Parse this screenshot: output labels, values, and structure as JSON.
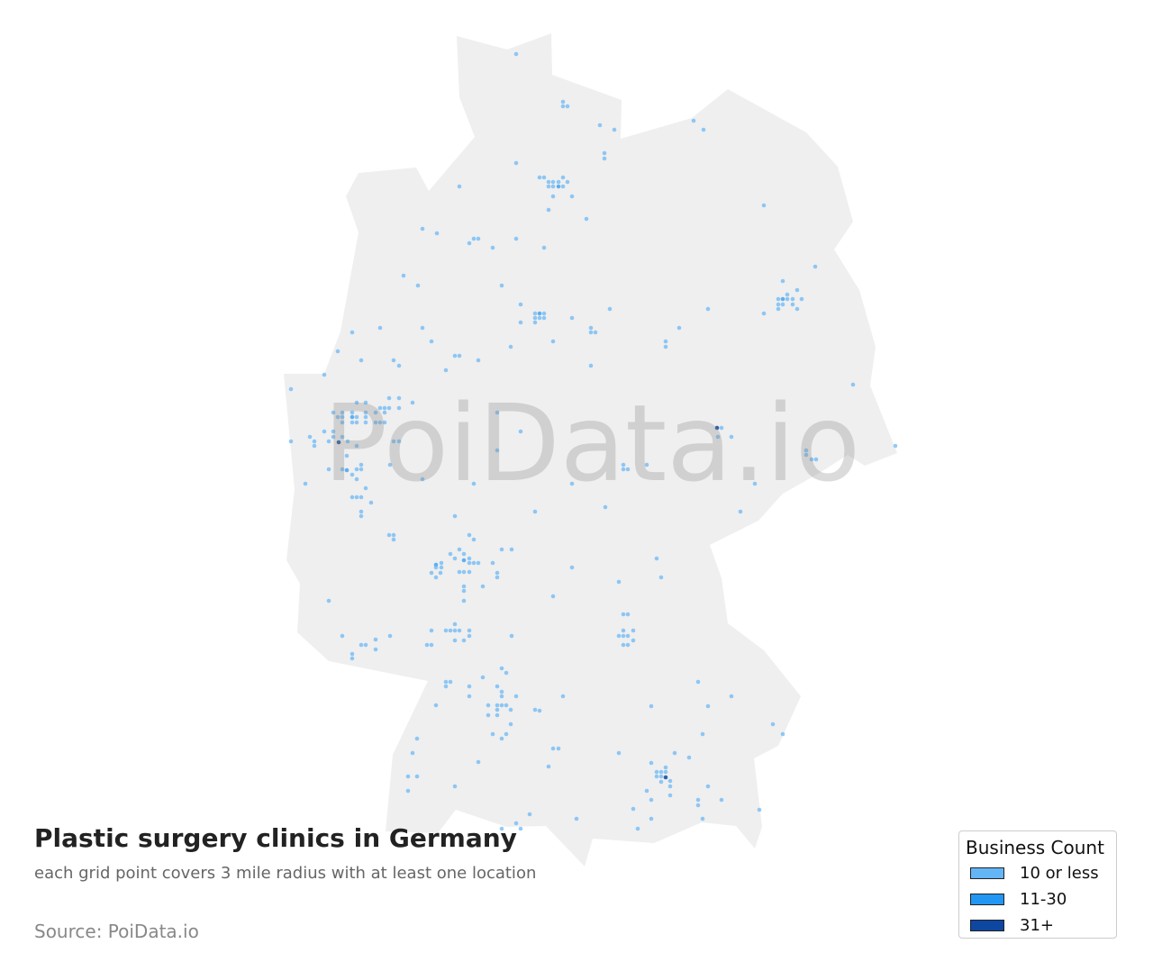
{
  "title": "Plastic surgery clinics in Germany",
  "subtitle": "each grid point covers 3 mile radius with at least one location",
  "source": "Source: PoiData.io",
  "watermark": "PoiData.io",
  "map": {
    "region": "Germany",
    "land_color": "#efefef",
    "dot_colors": {
      "low": "#64b5f6",
      "mid": "#2196f3",
      "high": "#0d47a1"
    }
  },
  "legend": {
    "title": "Business Count",
    "items": [
      {
        "label": "10 or less",
        "color": "#64b5f6"
      },
      {
        "label": "11-30",
        "color": "#2196f3"
      },
      {
        "label": "31+",
        "color": "#0d47a1"
      }
    ]
  }
}
